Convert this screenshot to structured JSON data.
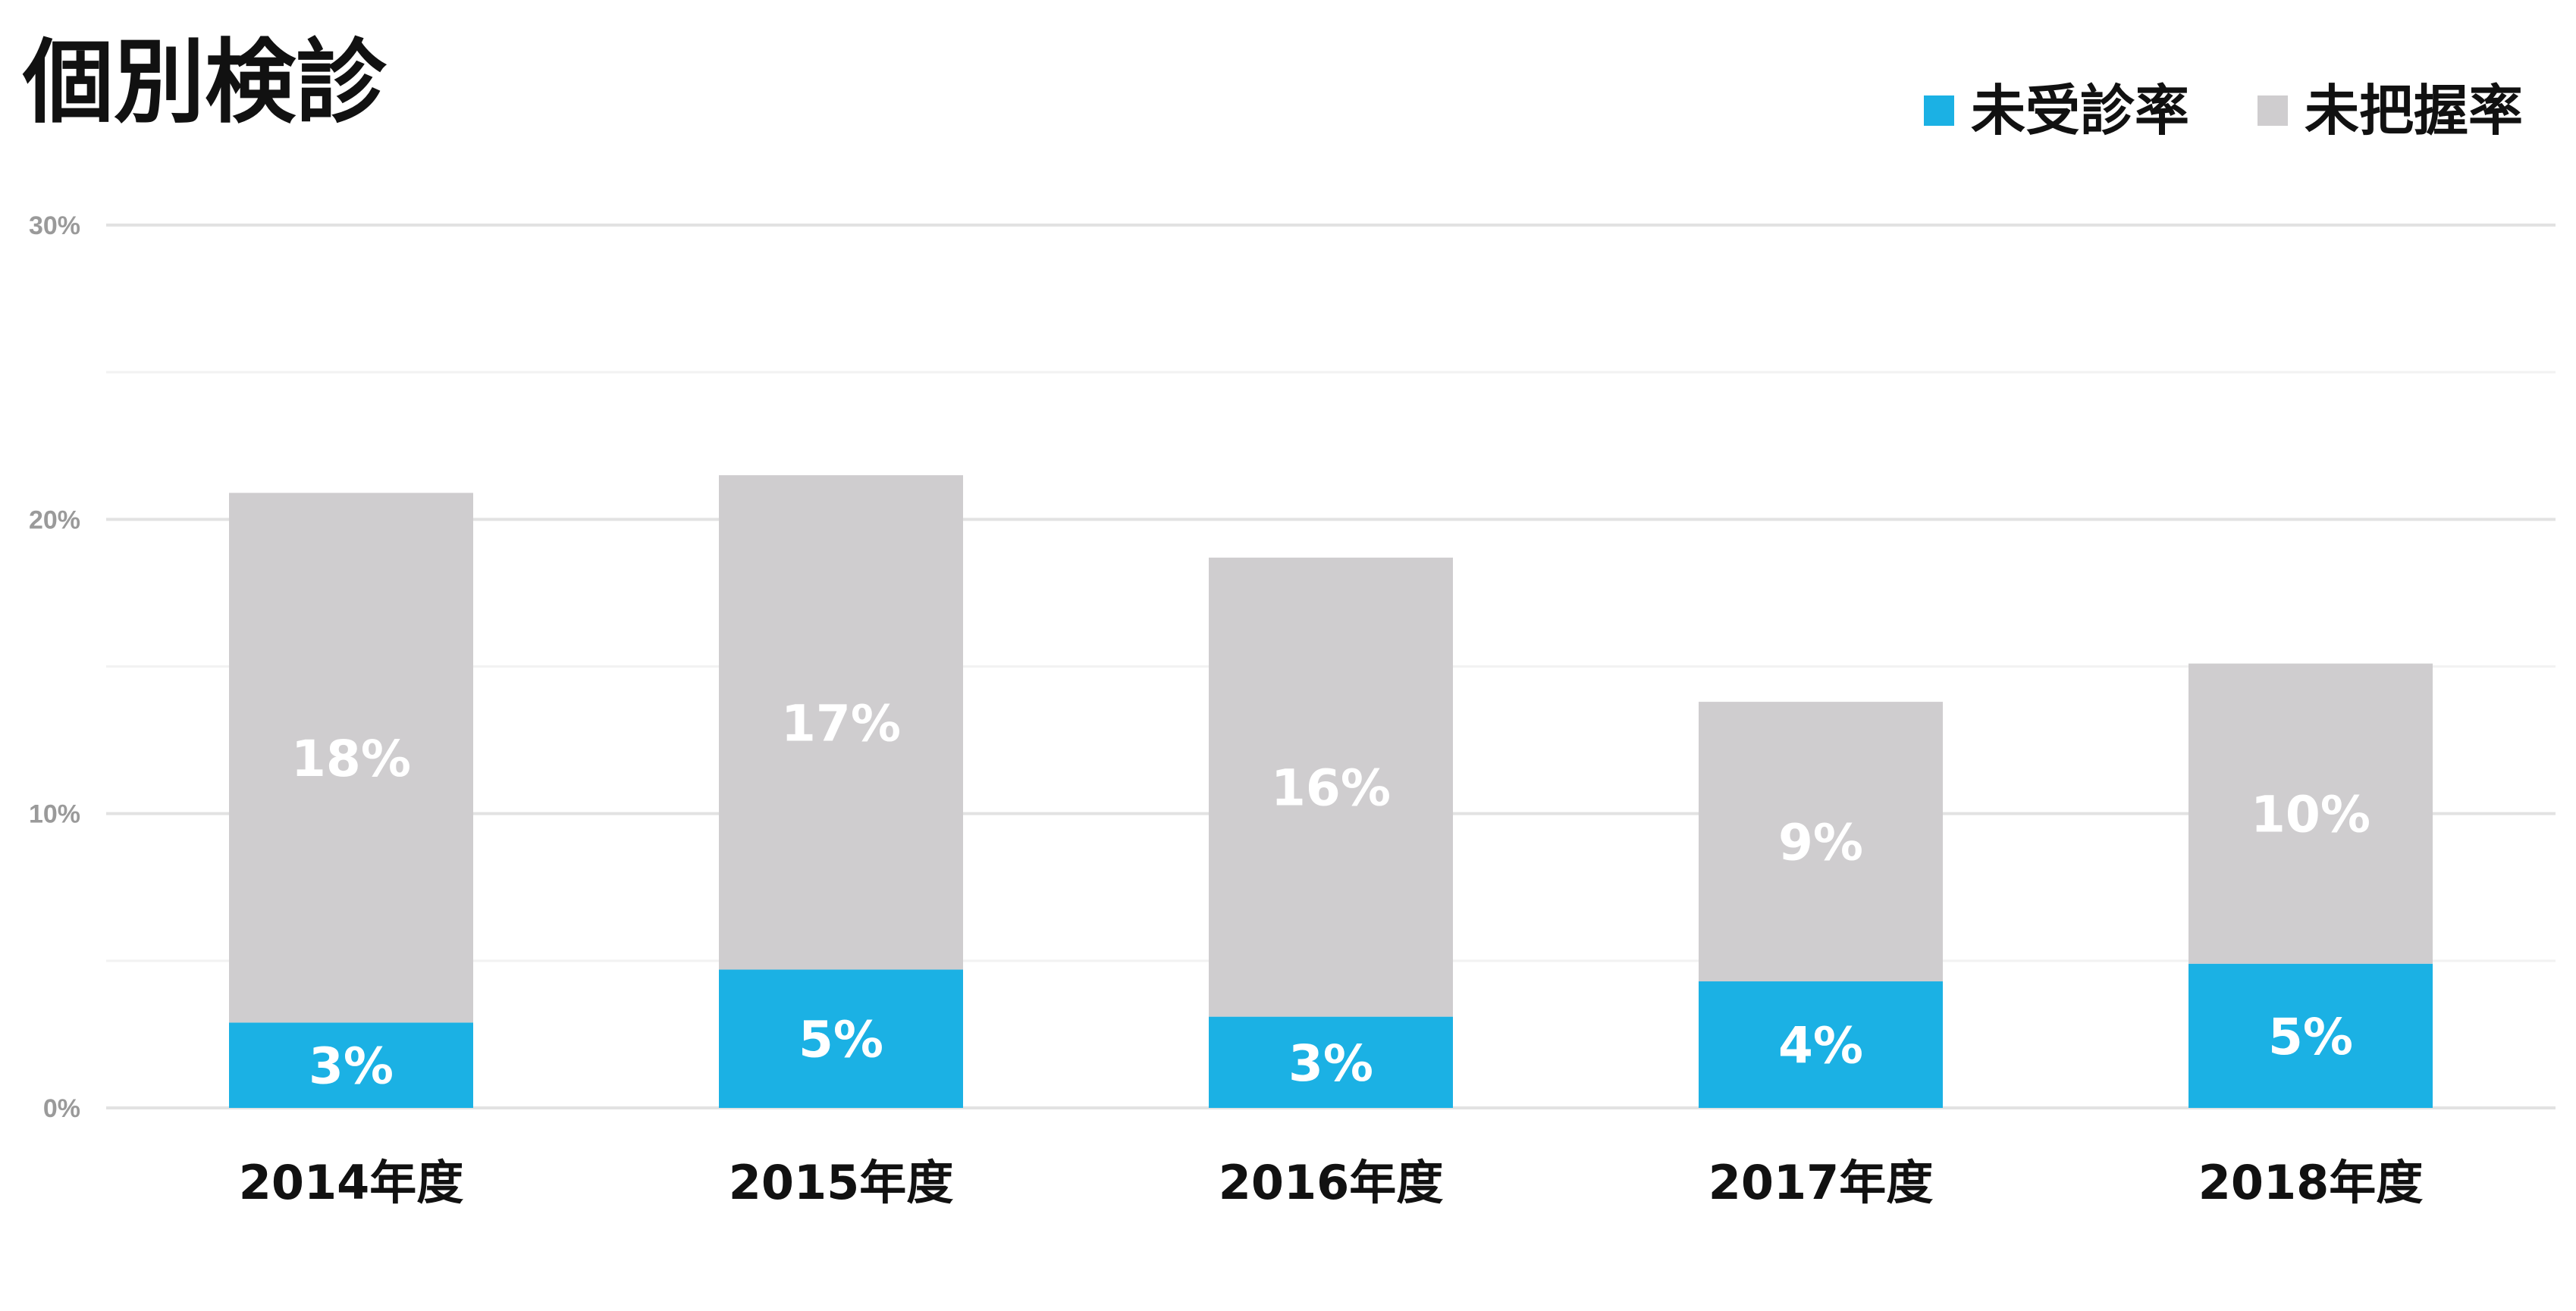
{
  "chart_data": {
    "type": "bar",
    "stacked": true,
    "title": "個別検診",
    "categories": [
      "2014年度",
      "2015年度",
      "2016年度",
      "2017年度",
      "2018年度"
    ],
    "series": [
      {
        "name": "未受診率",
        "color": "#1bb1e4",
        "values": [
          2.9,
          4.7,
          3.1,
          4.3,
          4.9
        ],
        "labels": [
          "3%",
          "5%",
          "3%",
          "4%",
          "5%"
        ]
      },
      {
        "name": "未把握率",
        "color": "#cfcdcf",
        "values": [
          18.0,
          16.8,
          15.6,
          9.5,
          10.2
        ],
        "labels": [
          "18%",
          "17%",
          "16%",
          "9%",
          "10%"
        ]
      }
    ],
    "ylim": [
      0,
      30
    ],
    "yticks": [
      "0%",
      "10%",
      "20%",
      "30%"
    ],
    "grid": true,
    "legend_position": "top-right",
    "xlabel": "",
    "ylabel": ""
  }
}
